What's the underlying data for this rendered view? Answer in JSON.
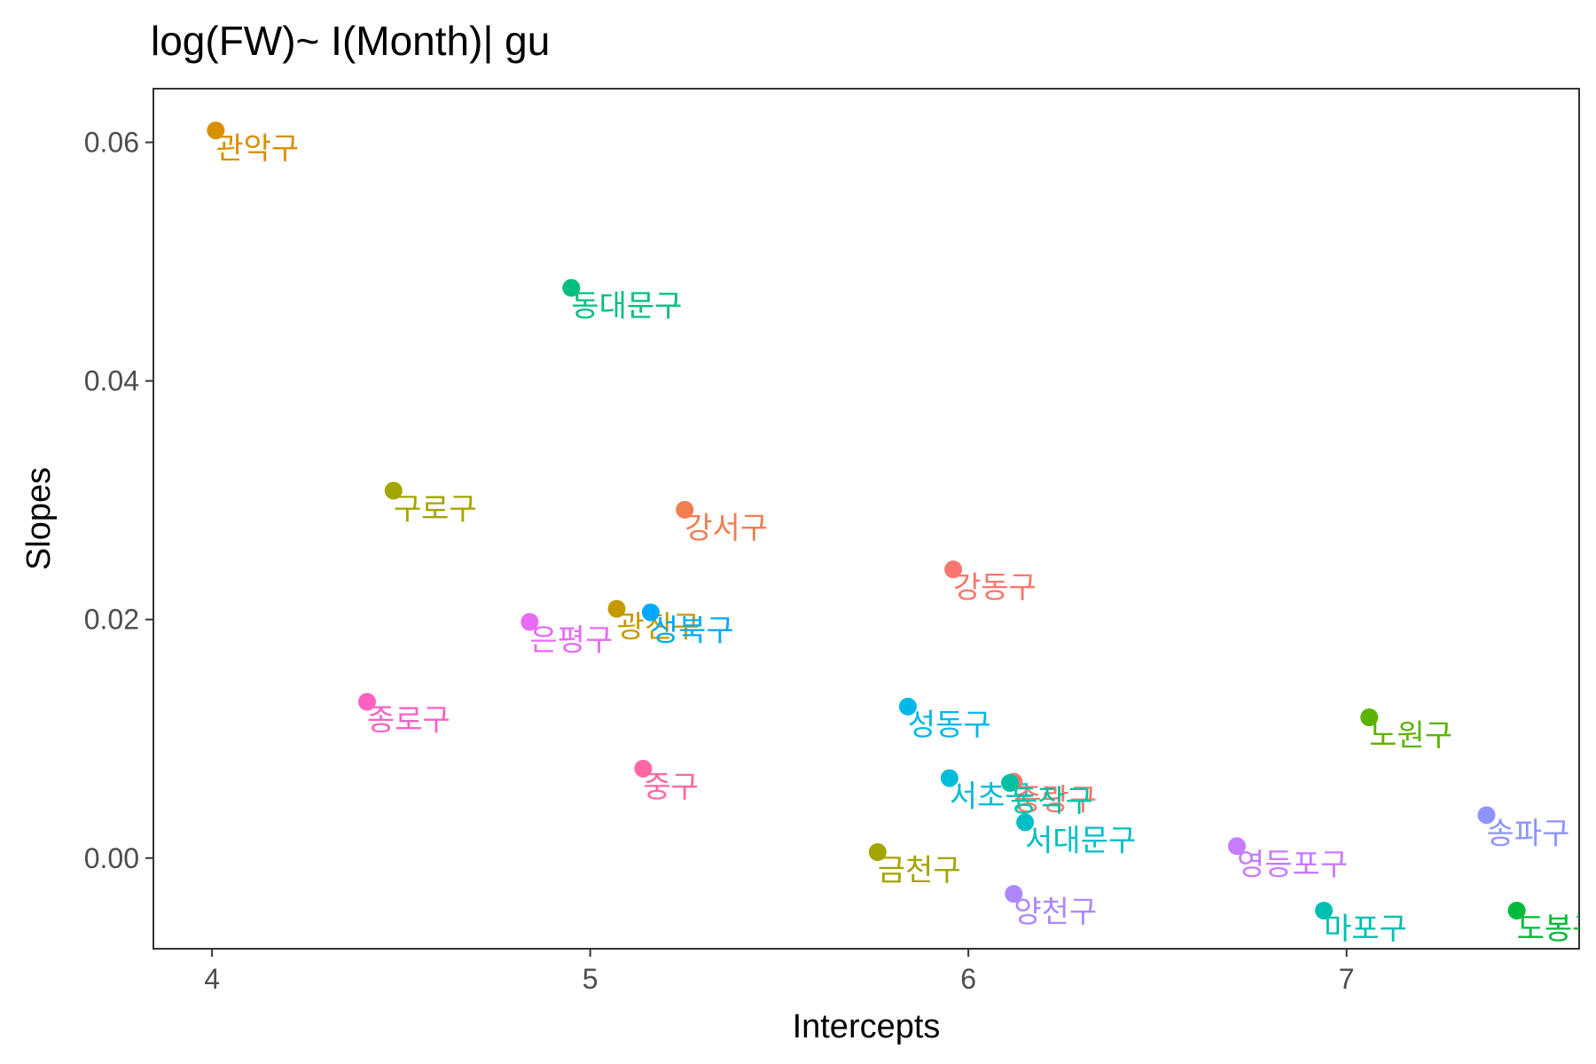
{
  "chart_data": {
    "type": "scatter",
    "title": "log(FW)~ I(Month)| gu",
    "xlabel": "Intercepts",
    "ylabel": "Slopes",
    "xlim": [
      3.845,
      7.615
    ],
    "ylim": [
      -0.0076,
      0.0645
    ],
    "xticks": [
      4,
      5,
      6,
      7
    ],
    "yticks": [
      0.0,
      0.02,
      0.04,
      0.06
    ],
    "xtick_labels": [
      "4",
      "5",
      "6",
      "7"
    ],
    "ytick_labels": [
      "0.00",
      "0.02",
      "0.04",
      "0.06"
    ],
    "grid": false,
    "legend": "none",
    "points": [
      {
        "label": "관악구",
        "x": 4.01,
        "y": 0.061,
        "color": "#D89000"
      },
      {
        "label": "동대문구",
        "x": 4.95,
        "y": 0.0478,
        "color": "#00BF7D"
      },
      {
        "label": "구로구",
        "x": 4.48,
        "y": 0.0308,
        "color": "#A3A500"
      },
      {
        "label": "강서구",
        "x": 5.25,
        "y": 0.0292,
        "color": "#F07E4F"
      },
      {
        "label": "강동구",
        "x": 5.96,
        "y": 0.0242,
        "color": "#F8766D"
      },
      {
        "label": "광진구",
        "x": 5.07,
        "y": 0.0209,
        "color": "#C49A00"
      },
      {
        "label": "성북구",
        "x": 5.16,
        "y": 0.0206,
        "color": "#00A9FF"
      },
      {
        "label": "은평구",
        "x": 4.84,
        "y": 0.0198,
        "color": "#E76BF3"
      },
      {
        "label": "종로구",
        "x": 4.41,
        "y": 0.0131,
        "color": "#FF61C3"
      },
      {
        "label": "성동구",
        "x": 5.84,
        "y": 0.0127,
        "color": "#00B8E7"
      },
      {
        "label": "노원구",
        "x": 7.06,
        "y": 0.0118,
        "color": "#5BB300"
      },
      {
        "label": "중구",
        "x": 5.14,
        "y": 0.0075,
        "color": "#FF67A4"
      },
      {
        "label": "서초구",
        "x": 5.95,
        "y": 0.0067,
        "color": "#00BCD8"
      },
      {
        "label": "중랑구",
        "x": 6.12,
        "y": 0.0064,
        "color": "#F8766D"
      },
      {
        "label": "동작구",
        "x": 6.11,
        "y": 0.0063,
        "color": "#00C1A3"
      },
      {
        "label": "송파구",
        "x": 7.37,
        "y": 0.0036,
        "color": "#8C95FF"
      },
      {
        "label": "서대문구",
        "x": 6.15,
        "y": 0.003,
        "color": "#00BFC4"
      },
      {
        "label": "영등포구",
        "x": 6.71,
        "y": 0.001,
        "color": "#C77CFF"
      },
      {
        "label": "금천구",
        "x": 5.76,
        "y": 0.0005,
        "color": "#A3A500"
      },
      {
        "label": "양천구",
        "x": 6.12,
        "y": -0.003,
        "color": "#AE87FF"
      },
      {
        "label": "마포구",
        "x": 6.94,
        "y": -0.0044,
        "color": "#00BFB0"
      },
      {
        "label": "도봉구",
        "x": 7.45,
        "y": -0.0044,
        "color": "#00BA38"
      }
    ]
  }
}
